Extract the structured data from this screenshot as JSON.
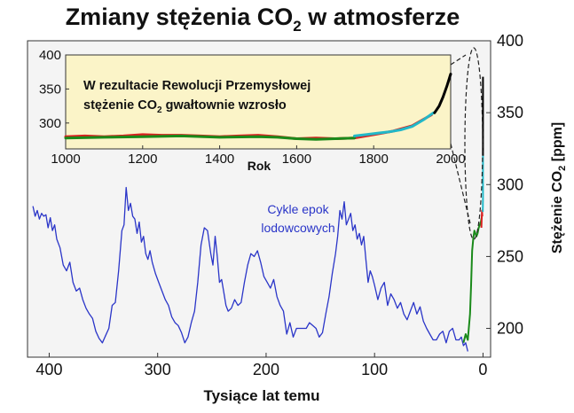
{
  "title": {
    "main": "Zmiany stężenia CO",
    "sub": "2",
    "tail": " w atmosferze"
  },
  "chart_data": [
    {
      "type": "line",
      "title": "Zmiany stężenia CO2 w atmosferze",
      "xlabel": "Tysiące lat temu",
      "ylabel_parts": {
        "main": "Stężenie CO",
        "sub": "2",
        "tail": " [ppm]"
      },
      "xlim": [
        420,
        -7
      ],
      "ylim": [
        180,
        400
      ],
      "xticks": [
        400,
        300,
        200,
        100,
        0
      ],
      "yticks": [
        200,
        250,
        300,
        350,
        400
      ],
      "legend": "none",
      "grid": false,
      "annotations": [
        {
          "lines": [
            "Cykle epok",
            "lodowcowych"
          ],
          "x": 65,
          "y": 270
        }
      ],
      "series": [
        {
          "color": "#2a35c8",
          "x": [
            415,
            413,
            411,
            409,
            407,
            405,
            403,
            401,
            399,
            397,
            395,
            393,
            390,
            387,
            384,
            381,
            378,
            375,
            372,
            369,
            366,
            363,
            360,
            357,
            354,
            351,
            348,
            345,
            342,
            339,
            336,
            333,
            331,
            329,
            327,
            325,
            323,
            321,
            319,
            317,
            315,
            313,
            311,
            309,
            307,
            305,
            302,
            299,
            296,
            293,
            290,
            287,
            284,
            281,
            278,
            275,
            272,
            269,
            266,
            263,
            260,
            257,
            254,
            251,
            249,
            247,
            245,
            243,
            241,
            239,
            237,
            235,
            232,
            229,
            226,
            223,
            220,
            217,
            214,
            211,
            208,
            205,
            202,
            199,
            196,
            193,
            190,
            187,
            184,
            181,
            178,
            175,
            172,
            169,
            166,
            163,
            160,
            157,
            154,
            151,
            148,
            145,
            142,
            139,
            136,
            134,
            132,
            130,
            128,
            126,
            124,
            122,
            120,
            118,
            116,
            114,
            112,
            110,
            108,
            106,
            104,
            102,
            100,
            97,
            94,
            91,
            88,
            85,
            82,
            79,
            76,
            73,
            70,
            67,
            64,
            61,
            58,
            55,
            52,
            49,
            46,
            43,
            40,
            37,
            34,
            31,
            28,
            25,
            22,
            20,
            18,
            16,
            14
          ],
          "y": [
            285,
            278,
            282,
            276,
            280,
            278,
            279,
            270,
            277,
            268,
            272,
            262,
            256,
            244,
            240,
            246,
            232,
            226,
            228,
            220,
            214,
            210,
            207,
            198,
            193,
            190,
            195,
            200,
            216,
            218,
            240,
            268,
            272,
            298,
            282,
            287,
            278,
            276,
            266,
            274,
            260,
            264,
            252,
            248,
            254,
            246,
            238,
            232,
            226,
            220,
            216,
            208,
            204,
            202,
            197,
            190,
            194,
            204,
            212,
            232,
            258,
            270,
            268,
            252,
            244,
            264,
            250,
            232,
            234,
            225,
            216,
            212,
            214,
            220,
            216,
            218,
            232,
            244,
            252,
            250,
            254,
            246,
            236,
            232,
            228,
            234,
            222,
            216,
            212,
            196,
            204,
            194,
            200,
            200,
            200,
            200,
            204,
            202,
            200,
            194,
            197,
            210,
            222,
            238,
            252,
            264,
            282,
            276,
            288,
            272,
            276,
            280,
            268,
            272,
            262,
            266,
            258,
            264,
            248,
            232,
            240,
            236,
            230,
            220,
            228,
            232,
            216,
            224,
            220,
            214,
            218,
            210,
            206,
            212,
            218,
            210,
            215,
            205,
            200,
            196,
            192,
            192,
            196,
            198,
            190,
            198,
            200,
            192,
            192,
            194,
            188,
            190,
            184
          ]
        },
        {
          "color": "#1a8a1a",
          "x": [
            18,
            16,
            14,
            12,
            11,
            10,
            9,
            8,
            7,
            6,
            5,
            4,
            3,
            2,
            1
          ],
          "y": [
            190,
            196,
            192,
            210,
            230,
            254,
            262,
            268,
            266,
            264,
            266,
            270,
            272,
            274,
            278
          ]
        },
        {
          "color": "#d92020",
          "x": [
            1.5,
            1.2,
            0.9,
            0.6
          ],
          "y": [
            270,
            277,
            282,
            278
          ]
        },
        {
          "color": "#22b8c8",
          "x": [
            0.2,
            0.16,
            0.12,
            0.09,
            0.06,
            0.04,
            0.02,
            0.01
          ],
          "y": [
            281,
            283,
            285,
            287,
            290,
            295,
            305,
            320
          ]
        },
        {
          "color": "#000000",
          "x": [
            0.01,
            0.005,
            0.0
          ],
          "y": [
            320,
            345,
            375
          ]
        }
      ]
    },
    {
      "type": "line",
      "xlabel": "Rok",
      "xlim": [
        1000,
        2000
      ],
      "ylim": [
        262,
        400
      ],
      "xticks": [
        1000,
        1200,
        1400,
        1600,
        1800,
        2000
      ],
      "yticks": [
        300,
        350,
        400
      ],
      "legend": "none",
      "grid": false,
      "annotation": {
        "line1": "W rezultacie Rewolucji Przemysłowej",
        "line2_main": "stężenie CO",
        "line2_sub": "2",
        "line2_tail": " gwałtownie wzrosło"
      },
      "series": [
        {
          "color": "#d92020",
          "x": [
            1000,
            1050,
            1100,
            1150,
            1200,
            1250,
            1300,
            1350,
            1400,
            1450,
            1500,
            1550,
            1600,
            1650,
            1700,
            1750,
            1800,
            1850,
            1900,
            1950
          ],
          "y": [
            280,
            281,
            280,
            281,
            283,
            282,
            282,
            281,
            280,
            281,
            282,
            280,
            277,
            278,
            277,
            278,
            283,
            288,
            296,
            312
          ]
        },
        {
          "color": "#1a8a1a",
          "x": [
            1000,
            1100,
            1200,
            1300,
            1400,
            1500,
            1550,
            1600,
            1650,
            1700,
            1750
          ],
          "y": [
            278,
            279,
            280,
            281,
            279,
            280,
            279,
            277,
            276,
            277,
            278
          ]
        },
        {
          "color": "#22b8c8",
          "x": [
            1750,
            1780,
            1810,
            1840,
            1870,
            1900,
            1930,
            1955
          ],
          "y": [
            281,
            283,
            285,
            287,
            290,
            295,
            305,
            315
          ]
        },
        {
          "color": "#000000",
          "x": [
            1958,
            1970,
            1980,
            1990,
            2000
          ],
          "y": [
            315,
            325,
            338,
            354,
            372
          ]
        }
      ]
    }
  ]
}
